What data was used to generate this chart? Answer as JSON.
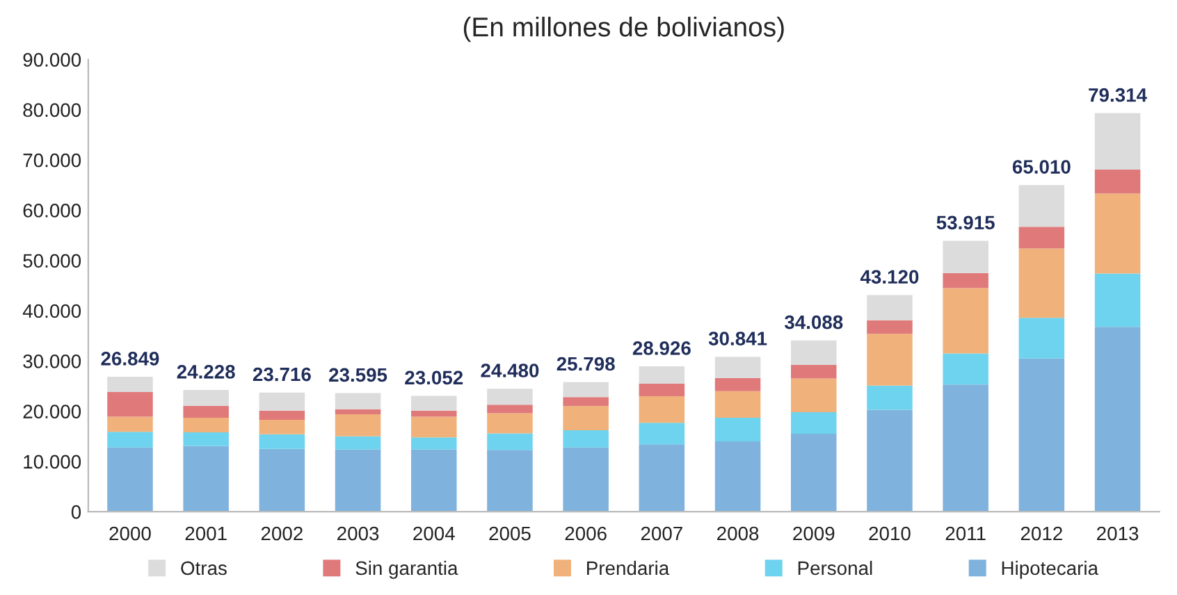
{
  "chart_data": {
    "type": "bar",
    "title": "(En millones de bolivianos)",
    "stacked": true,
    "categories": [
      "2000",
      "2001",
      "2002",
      "2003",
      "2004",
      "2005",
      "2006",
      "2007",
      "2008",
      "2009",
      "2010",
      "2011",
      "2012",
      "2013"
    ],
    "series": [
      {
        "name": "Hipotecaria",
        "color": "#7fb2dc",
        "values": [
          12800,
          13100,
          12500,
          12400,
          12400,
          12300,
          12800,
          13400,
          14000,
          15500,
          20300,
          25300,
          30500,
          36800
        ]
      },
      {
        "name": "Personal",
        "color": "#6dd3ee",
        "values": [
          3100,
          2700,
          2900,
          2600,
          2400,
          3300,
          3400,
          4300,
          4700,
          4300,
          4800,
          6200,
          8100,
          10600
        ]
      },
      {
        "name": "Prendaria",
        "color": "#f0b27a",
        "values": [
          3000,
          2900,
          2900,
          4400,
          4100,
          4000,
          4800,
          5300,
          5300,
          6700,
          10300,
          13000,
          13800,
          15900
        ]
      },
      {
        "name": "Sin garantia",
        "color": "#e07a7a",
        "values": [
          4900,
          2400,
          1800,
          1000,
          1200,
          1700,
          1800,
          2500,
          2600,
          2700,
          2700,
          3000,
          4300,
          4800
        ]
      },
      {
        "name": "Otras",
        "color": "#dcdcdc",
        "values": [
          3049,
          3128,
          3616,
          3195,
          2952,
          3180,
          2998,
          3426,
          4241,
          4888,
          5020,
          6415,
          8310,
          11214
        ]
      }
    ],
    "totals": [
      "26.849",
      "24.228",
      "23.716",
      "23.595",
      "23.052",
      "24.480",
      "25.798",
      "28.926",
      "30.841",
      "34.088",
      "43.120",
      "53.915",
      "65.010",
      "79.314"
    ],
    "ylim": [
      0,
      90000
    ],
    "yticks": [
      {
        "value": 0,
        "label": "0"
      },
      {
        "value": 10000,
        "label": "10.000"
      },
      {
        "value": 20000,
        "label": "20.000"
      },
      {
        "value": 30000,
        "label": "30.000"
      },
      {
        "value": 40000,
        "label": "40.000"
      },
      {
        "value": 50000,
        "label": "50.000"
      },
      {
        "value": 60000,
        "label": "60.000"
      },
      {
        "value": 70000,
        "label": "70.000"
      },
      {
        "value": 80000,
        "label": "80.000"
      },
      {
        "value": 90000,
        "label": "90.000"
      }
    ],
    "grid": false,
    "legend": "bottom"
  }
}
